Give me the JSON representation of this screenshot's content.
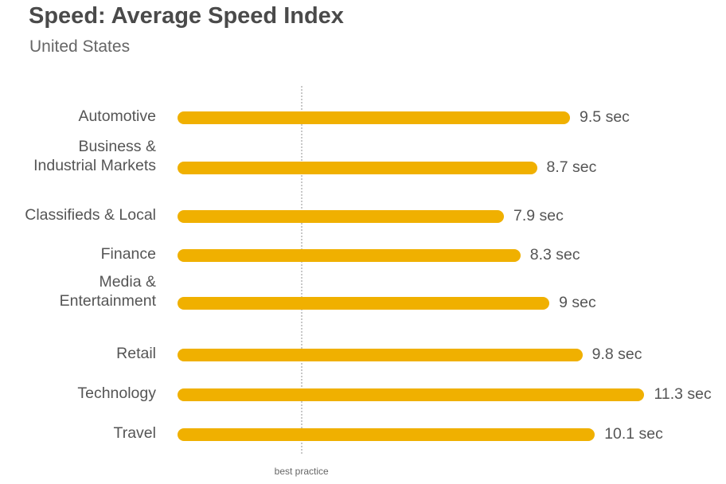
{
  "chart_data": {
    "type": "bar",
    "orientation": "horizontal",
    "title": "Speed: Average Speed Index",
    "subtitle": "United States",
    "categories": [
      "Automotive",
      "Business &\nIndustrial Markets",
      "Classifieds & Local",
      "Finance",
      "Media &\nEntertainment",
      "Retail",
      "Technology",
      "Travel"
    ],
    "values": [
      9.5,
      8.7,
      7.9,
      8.3,
      9,
      9.8,
      11.3,
      10.1
    ],
    "value_labels": [
      "9.5 sec",
      "8.7 sec",
      "7.9 sec",
      "8.3 sec",
      "9 sec",
      "9.8 sec",
      "11.3 sec",
      "10.1 sec"
    ],
    "unit": "sec",
    "reference_line": {
      "label": "best practice",
      "value": 3
    },
    "color": "#F0B000",
    "grid": false
  }
}
